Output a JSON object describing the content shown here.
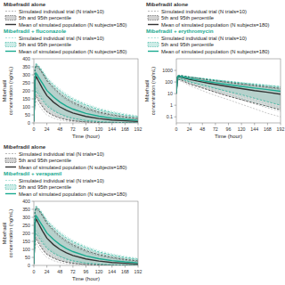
{
  "chart_data": [
    {
      "type": "line",
      "legend": "top",
      "x": [
        0,
        2,
        4,
        6,
        8,
        12,
        16,
        20,
        24,
        36,
        48,
        60,
        72,
        96,
        120,
        144,
        168,
        192
      ],
      "xlabel": "Time (hour)",
      "ylabel": "Mibefradil\nconcentration (ng/mL)",
      "xlim": [
        0,
        192
      ],
      "xticks": [
        0,
        24,
        48,
        72,
        96,
        120,
        144,
        168,
        192
      ],
      "ylim": [
        0,
        400
      ],
      "yticks": [
        0,
        50,
        100,
        150,
        200,
        250,
        300,
        350,
        400
      ],
      "legend_entries": [
        "Simulated individual trial (N trials=10)",
        "5th and 95th percentile",
        "Mean of simulated population (N subjects=180)"
      ],
      "series": [
        {
          "name": "Mibefradil alone",
          "color": "#333333",
          "values": [
            10,
            260,
            290,
            280,
            265,
            240,
            215,
            192,
            170,
            130,
            100,
            78,
            62,
            40,
            27,
            18,
            13,
            9
          ],
          "p5": [
            10,
            140,
            165,
            155,
            142,
            120,
            100,
            82,
            68,
            45,
            30,
            20,
            13,
            6,
            3,
            1.5,
            0.8,
            0.4
          ],
          "p95": [
            10,
            330,
            360,
            355,
            348,
            330,
            310,
            288,
            265,
            220,
            182,
            152,
            128,
            92,
            67,
            50,
            37,
            28
          ],
          "individual": [
            [
              10,
              120,
              140,
              130,
              118,
              97,
              79,
              63,
              50,
              30,
              18,
              11,
              7,
              3,
              1.2,
              0.5,
              0.2,
              0.1
            ],
            [
              10,
              155,
              180,
              170,
              156,
              132,
              110,
              90,
              74,
              50,
              33,
              21,
              14,
              6,
              3,
              1.3,
              0.6,
              0.3
            ],
            [
              10,
              320,
              350,
              345,
              340,
              325,
              305,
              282,
              258,
              213,
              174,
              143,
              119,
              84,
              60,
              44,
              32,
              23
            ],
            [
              10,
              335,
              365,
              360,
              354,
              338,
              316,
              294,
              272,
              228,
              190,
              160,
              135,
              99,
              73,
              55,
              41,
              31
            ]
          ]
        },
        {
          "name": "Mibefradil + fluconazole",
          "color": "#1aaa90",
          "values": [
            10,
            280,
            310,
            302,
            290,
            268,
            246,
            224,
            202,
            162,
            130,
            105,
            86,
            59,
            42,
            30,
            22,
            16
          ],
          "p5": [
            10,
            175,
            200,
            192,
            180,
            160,
            140,
            122,
            105,
            76,
            55,
            39,
            28,
            15,
            8,
            4,
            2,
            1
          ],
          "p95": [
            10,
            338,
            368,
            362,
            356,
            340,
            320,
            300,
            278,
            238,
            202,
            172,
            148,
            112,
            84,
            65,
            50,
            39
          ],
          "individual": [
            [
              10,
              160,
              185,
              178,
              166,
              145,
              125,
              107,
              91,
              63,
              43,
              29,
              20,
              9,
              4,
              1.8,
              0.8,
              0.4
            ],
            [
              10,
              195,
              222,
              214,
              200,
              178,
              156,
              135,
              115,
              84,
              59,
              42,
              29,
              14,
              6,
              2.8,
              1.3,
              0.6
            ],
            [
              10,
              330,
              360,
              355,
              350,
              334,
              314,
              293,
              270,
              230,
              195,
              165,
              140,
              105,
              79,
              60,
              46,
              35
            ],
            [
              10,
              342,
              374,
              368,
              362,
              348,
              328,
              308,
              286,
              247,
              212,
              182,
              156,
              120,
              92,
              72,
              57,
              44
            ]
          ]
        }
      ]
    },
    {
      "type": "line",
      "legend": "top",
      "log": "y",
      "x": [
        0,
        2,
        4,
        6,
        8,
        12,
        16,
        20,
        24,
        36,
        48,
        60,
        72,
        96,
        120,
        144,
        168,
        192
      ],
      "xlabel": "Time (hour)",
      "ylabel": "Mibefradil\nconcentration (ng/mL)",
      "xlim": [
        0,
        192
      ],
      "xticks": [
        0,
        24,
        48,
        72,
        96,
        120,
        144,
        168,
        192
      ],
      "ylim": [
        0.03,
        10000
      ],
      "yticks": [
        0.1,
        1,
        10,
        100,
        1000
      ],
      "legend_entries": [
        "Simulated individual trial (N trials=10)",
        "5th and 95th percentile",
        "Mean of simulated population (N subjects=180)"
      ],
      "series": [
        {
          "name": "Mibefradil alone",
          "color": "#333333",
          "values": [
            10,
            260,
            290,
            280,
            265,
            240,
            215,
            192,
            170,
            130,
            100,
            78,
            62,
            40,
            27,
            18,
            13,
            9
          ],
          "p5": [
            10,
            140,
            165,
            155,
            142,
            120,
            100,
            82,
            68,
            45,
            30,
            20,
            13,
            6,
            3,
            1.5,
            0.8,
            0.4
          ],
          "p95": [
            10,
            330,
            360,
            355,
            348,
            330,
            310,
            288,
            265,
            220,
            182,
            152,
            128,
            92,
            67,
            50,
            37,
            28
          ],
          "individual": [
            [
              10,
              120,
              140,
              130,
              118,
              97,
              79,
              63,
              50,
              30,
              18,
              11,
              7,
              3,
              1.2,
              0.5,
              0.2,
              0.1
            ],
            [
              10,
              155,
              180,
              170,
              156,
              132,
              110,
              90,
              74,
              50,
              33,
              21,
              14,
              6,
              3,
              1.3,
              0.6,
              0.3
            ],
            [
              10,
              320,
              350,
              345,
              340,
              325,
              305,
              282,
              258,
              213,
              174,
              143,
              119,
              84,
              60,
              44,
              32,
              23
            ],
            [
              10,
              335,
              365,
              360,
              354,
              338,
              316,
              294,
              272,
              228,
              190,
              160,
              135,
              99,
              73,
              55,
              41,
              31
            ]
          ]
        },
        {
          "name": "Mibefradil + erythromycin",
          "color": "#1aaa90",
          "values": [
            10,
            280,
            310,
            302,
            290,
            268,
            246,
            224,
            202,
            162,
            130,
            105,
            86,
            59,
            42,
            30,
            22,
            16
          ],
          "p5": [
            10,
            175,
            200,
            192,
            180,
            160,
            140,
            122,
            105,
            76,
            55,
            39,
            28,
            15,
            8,
            4,
            2,
            1
          ],
          "p95": [
            10,
            338,
            368,
            362,
            356,
            340,
            320,
            300,
            278,
            238,
            202,
            172,
            148,
            112,
            84,
            65,
            50,
            39
          ],
          "individual": [
            [
              10,
              160,
              185,
              178,
              166,
              145,
              125,
              107,
              91,
              63,
              43,
              29,
              20,
              9,
              4,
              1.8,
              0.8,
              0.4
            ],
            [
              10,
              195,
              222,
              214,
              200,
              178,
              156,
              135,
              115,
              84,
              59,
              42,
              29,
              14,
              6,
              2.8,
              1.3,
              0.6
            ],
            [
              10,
              330,
              360,
              355,
              350,
              334,
              314,
              293,
              270,
              230,
              195,
              165,
              140,
              105,
              79,
              60,
              46,
              35
            ],
            [
              10,
              342,
              374,
              368,
              362,
              348,
              328,
              308,
              286,
              247,
              212,
              182,
              156,
              120,
              92,
              72,
              57,
              44
            ]
          ]
        }
      ]
    },
    {
      "type": "line",
      "legend": "top",
      "x": [
        0,
        2,
        4,
        6,
        8,
        12,
        16,
        20,
        24,
        36,
        48,
        60,
        72,
        96,
        120,
        144,
        168,
        192
      ],
      "xlabel": "Time (hour)",
      "ylabel": "Mibefradil\nconcentration (ng/mL)",
      "xlim": [
        0,
        192
      ],
      "xticks": [
        0,
        24,
        48,
        72,
        96,
        120,
        144,
        168,
        192
      ],
      "ylim": [
        0,
        400
      ],
      "yticks": [
        0,
        50,
        100,
        150,
        200,
        250,
        300,
        350,
        400
      ],
      "legend_entries": [
        "Simulated individual trial (N trials=10)",
        "5th and 95th percentile",
        "Mean of simulated population (N subjects=180)"
      ],
      "series": [
        {
          "name": "Mibefradil alone",
          "color": "#333333",
          "values": [
            10,
            260,
            290,
            280,
            265,
            240,
            215,
            192,
            170,
            130,
            100,
            78,
            62,
            40,
            27,
            18,
            13,
            9
          ],
          "p5": [
            10,
            140,
            165,
            155,
            142,
            120,
            100,
            82,
            68,
            45,
            30,
            20,
            13,
            6,
            3,
            1.5,
            0.8,
            0.4
          ],
          "p95": [
            10,
            330,
            360,
            355,
            348,
            330,
            310,
            288,
            265,
            220,
            182,
            152,
            128,
            92,
            67,
            50,
            37,
            28
          ],
          "individual": [
            [
              10,
              120,
              140,
              130,
              118,
              97,
              79,
              63,
              50,
              30,
              18,
              11,
              7,
              3,
              1.2,
              0.5,
              0.2,
              0.1
            ],
            [
              10,
              155,
              180,
              170,
              156,
              132,
              110,
              90,
              74,
              50,
              33,
              21,
              14,
              6,
              3,
              1.3,
              0.6,
              0.3
            ],
            [
              10,
              320,
              350,
              345,
              340,
              325,
              305,
              282,
              258,
              213,
              174,
              143,
              119,
              84,
              60,
              44,
              32,
              23
            ],
            [
              10,
              335,
              365,
              360,
              354,
              338,
              316,
              294,
              272,
              228,
              190,
              160,
              135,
              99,
              73,
              55,
              41,
              31
            ]
          ]
        },
        {
          "name": "Mibefradil + verapamil",
          "color": "#1aaa90",
          "values": [
            10,
            280,
            310,
            302,
            290,
            268,
            246,
            224,
            202,
            162,
            130,
            105,
            86,
            59,
            42,
            30,
            22,
            16
          ],
          "p5": [
            10,
            175,
            200,
            192,
            180,
            160,
            140,
            122,
            105,
            76,
            55,
            39,
            28,
            15,
            8,
            4,
            2,
            1
          ],
          "p95": [
            10,
            338,
            368,
            362,
            356,
            340,
            320,
            300,
            278,
            238,
            202,
            172,
            148,
            112,
            84,
            65,
            50,
            39
          ],
          "individual": [
            [
              10,
              160,
              185,
              178,
              166,
              145,
              125,
              107,
              91,
              63,
              43,
              29,
              20,
              9,
              4,
              1.8,
              0.8,
              0.4
            ],
            [
              10,
              195,
              222,
              214,
              200,
              178,
              156,
              135,
              115,
              84,
              59,
              42,
              29,
              14,
              6,
              2.8,
              1.3,
              0.6
            ],
            [
              10,
              330,
              360,
              355,
              350,
              334,
              314,
              293,
              270,
              230,
              195,
              165,
              140,
              105,
              79,
              60,
              46,
              35
            ],
            [
              10,
              342,
              374,
              368,
              362,
              348,
              328,
              308,
              286,
              247,
              212,
              182,
              156,
              120,
              92,
              72,
              57,
              44
            ]
          ]
        }
      ]
    }
  ]
}
